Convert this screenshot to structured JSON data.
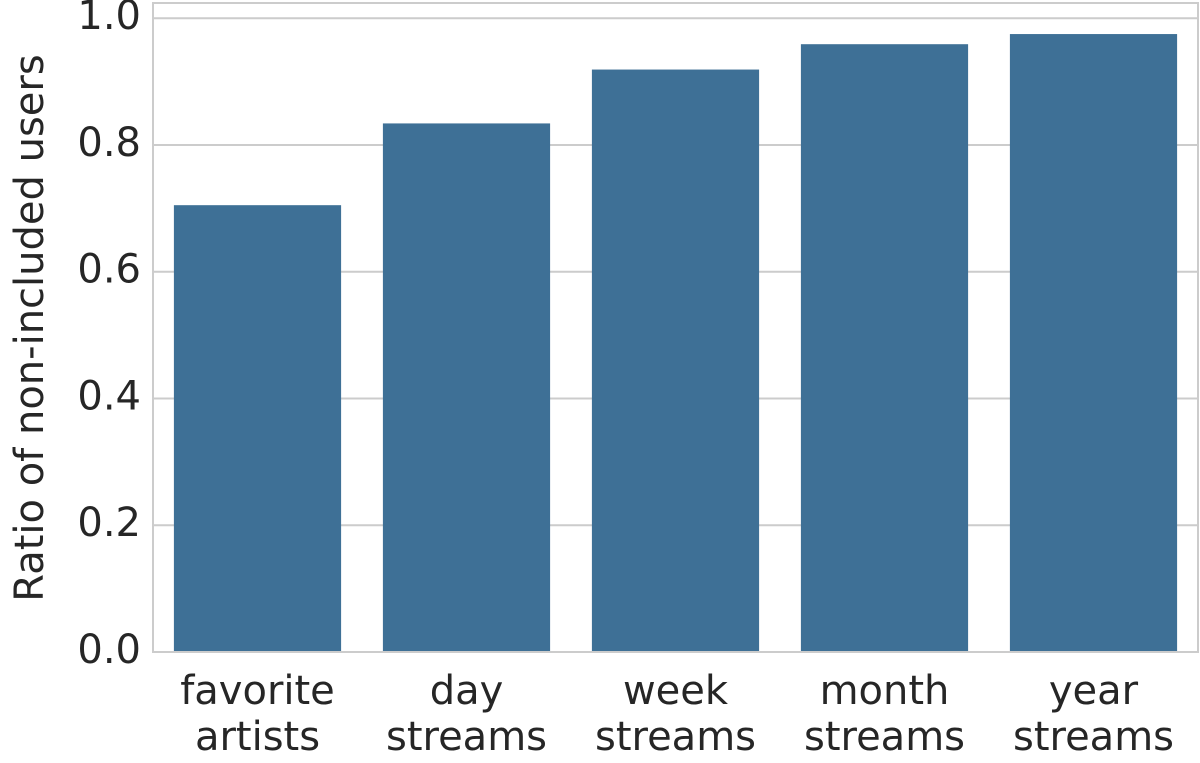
{
  "chart_data": {
    "type": "bar",
    "y_label": "Ratio of non-included users",
    "categories": [
      "favorite artists",
      "day streams",
      "week streams",
      "month streams",
      "year streams"
    ],
    "values": [
      0.705,
      0.834,
      0.919,
      0.959,
      0.975
    ],
    "color": "#3e7096",
    "ylim": [
      0,
      1.024
    ],
    "yticks": [
      {
        "value": 0,
        "label": "0.0"
      },
      {
        "value": 0.2,
        "label": "0.2"
      },
      {
        "value": 0.4,
        "label": "0.4"
      },
      {
        "value": 0.6,
        "label": "0.6"
      },
      {
        "value": 0.8,
        "label": "0.8"
      },
      {
        "value": 1.0,
        "label": "1.0"
      }
    ],
    "grid": true
  }
}
